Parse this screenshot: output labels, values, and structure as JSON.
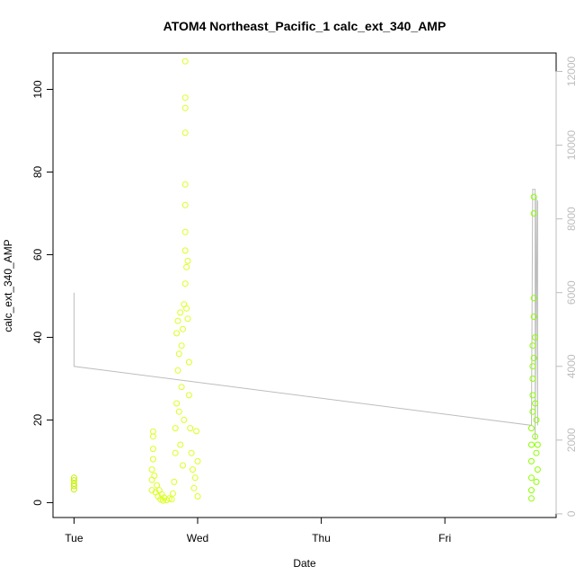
{
  "chart_data": {
    "type": "scatter",
    "title": "ATOM4 Northeast_Pacific_1 calc_ext_340_AMP",
    "xlabel": "Date",
    "ylabel": "calc_ext_340_AMP",
    "x_ticks": [
      "Tue",
      "Wed",
      "Thu",
      "Fri"
    ],
    "y_ticks": [
      0,
      20,
      40,
      60,
      80,
      100
    ],
    "y_right_ticks": [
      0,
      2000,
      4000,
      6000,
      8000,
      10000,
      12000
    ],
    "x_range_days": [
      -0.17,
      3.9
    ],
    "ylim": [
      -3.6,
      108.8
    ],
    "y_right_lim": [
      -100,
      12500
    ],
    "grid": false,
    "legend": "none",
    "colors": {
      "points_early": "#c4f000",
      "points_mid": "#dcff20",
      "points_late": "#8cff00",
      "secondary_line": "#bdbdbd",
      "axis": "#000000",
      "right_axis": "#bdbdbd"
    },
    "series": [
      {
        "values": [
          {
            "x": 0.0,
            "y": 3.2
          },
          {
            "x": 0.0,
            "y": 4.0
          },
          {
            "x": 0.0,
            "y": 4.6
          },
          {
            "x": 0.0,
            "y": 5.4
          },
          {
            "x": 0.0,
            "y": 6.0
          },
          {
            "x": 0.63,
            "y": 3.0
          },
          {
            "x": 0.63,
            "y": 5.5
          },
          {
            "x": 0.63,
            "y": 8.0
          },
          {
            "x": 0.64,
            "y": 10.5
          },
          {
            "x": 0.64,
            "y": 13.0
          },
          {
            "x": 0.64,
            "y": 16.0
          },
          {
            "x": 0.64,
            "y": 17.2
          },
          {
            "x": 0.65,
            "y": 6.5
          },
          {
            "x": 0.66,
            "y": 2.5
          },
          {
            "x": 0.67,
            "y": 4.2
          },
          {
            "x": 0.68,
            "y": 1.5
          },
          {
            "x": 0.69,
            "y": 3.0
          },
          {
            "x": 0.7,
            "y": 0.8
          },
          {
            "x": 0.71,
            "y": 2.0
          },
          {
            "x": 0.72,
            "y": 0.5
          },
          {
            "x": 0.73,
            "y": 1.2
          },
          {
            "x": 0.75,
            "y": 0.6
          },
          {
            "x": 0.77,
            "y": 1.0
          },
          {
            "x": 0.79,
            "y": 0.8
          },
          {
            "x": 0.8,
            "y": 2.2
          },
          {
            "x": 0.81,
            "y": 5.0
          },
          {
            "x": 0.82,
            "y": 12.0
          },
          {
            "x": 0.82,
            "y": 18.0
          },
          {
            "x": 0.83,
            "y": 24.0
          },
          {
            "x": 0.83,
            "y": 41.0
          },
          {
            "x": 0.84,
            "y": 32.0
          },
          {
            "x": 0.84,
            "y": 44.0
          },
          {
            "x": 0.85,
            "y": 22.0
          },
          {
            "x": 0.85,
            "y": 36.0
          },
          {
            "x": 0.86,
            "y": 46.0
          },
          {
            "x": 0.86,
            "y": 14.0
          },
          {
            "x": 0.87,
            "y": 28.0
          },
          {
            "x": 0.87,
            "y": 38.0
          },
          {
            "x": 0.88,
            "y": 9.0
          },
          {
            "x": 0.88,
            "y": 42.0
          },
          {
            "x": 0.89,
            "y": 20.0
          },
          {
            "x": 0.89,
            "y": 48.0
          },
          {
            "x": 0.9,
            "y": 53.0
          },
          {
            "x": 0.9,
            "y": 61.0
          },
          {
            "x": 0.9,
            "y": 65.5
          },
          {
            "x": 0.9,
            "y": 72.0
          },
          {
            "x": 0.9,
            "y": 77.0
          },
          {
            "x": 0.9,
            "y": 89.5
          },
          {
            "x": 0.9,
            "y": 95.5
          },
          {
            "x": 0.9,
            "y": 98.0
          },
          {
            "x": 0.9,
            "y": 106.8
          },
          {
            "x": 0.91,
            "y": 57.0
          },
          {
            "x": 0.91,
            "y": 47.0
          },
          {
            "x": 0.92,
            "y": 58.5
          },
          {
            "x": 0.92,
            "y": 44.5
          },
          {
            "x": 0.93,
            "y": 34.0
          },
          {
            "x": 0.93,
            "y": 26.0
          },
          {
            "x": 0.94,
            "y": 18.0
          },
          {
            "x": 0.95,
            "y": 12.0
          },
          {
            "x": 0.96,
            "y": 8.0
          },
          {
            "x": 0.97,
            "y": 3.5
          },
          {
            "x": 0.98,
            "y": 6.0
          },
          {
            "x": 0.99,
            "y": 17.3
          },
          {
            "x": 1.0,
            "y": 10.0
          },
          {
            "x": 1.0,
            "y": 1.5
          },
          {
            "x": 3.7,
            "y": 1.0
          },
          {
            "x": 3.7,
            "y": 3.0
          },
          {
            "x": 3.7,
            "y": 6.0
          },
          {
            "x": 3.7,
            "y": 10.0
          },
          {
            "x": 3.7,
            "y": 14.0
          },
          {
            "x": 3.7,
            "y": 18.0
          },
          {
            "x": 3.71,
            "y": 22.0
          },
          {
            "x": 3.71,
            "y": 26.0
          },
          {
            "x": 3.71,
            "y": 30.0
          },
          {
            "x": 3.71,
            "y": 33.0
          },
          {
            "x": 3.71,
            "y": 38.0
          },
          {
            "x": 3.72,
            "y": 45.0
          },
          {
            "x": 3.72,
            "y": 49.5
          },
          {
            "x": 3.72,
            "y": 70.0
          },
          {
            "x": 3.72,
            "y": 74.0
          },
          {
            "x": 3.72,
            "y": 35.0
          },
          {
            "x": 3.73,
            "y": 40.0
          },
          {
            "x": 3.73,
            "y": 24.0
          },
          {
            "x": 3.73,
            "y": 16.0
          },
          {
            "x": 3.74,
            "y": 12.0
          },
          {
            "x": 3.74,
            "y": 20.0
          },
          {
            "x": 3.74,
            "y": 5.0
          },
          {
            "x": 3.75,
            "y": 8.0
          },
          {
            "x": 3.75,
            "y": 14.0
          }
        ]
      }
    ],
    "secondary_line": {
      "axis": "right",
      "values": [
        {
          "x": 0.0,
          "y": 6000
        },
        {
          "x": 0.0,
          "y": 4000
        },
        {
          "x": 3.7,
          "y": 2400
        },
        {
          "x": 3.71,
          "y": 8800
        },
        {
          "x": 3.73,
          "y": 8800
        },
        {
          "x": 3.73,
          "y": 2000
        },
        {
          "x": 3.74,
          "y": 8600
        },
        {
          "x": 3.75,
          "y": 2400
        },
        {
          "x": 3.75,
          "y": 8500
        }
      ]
    }
  }
}
